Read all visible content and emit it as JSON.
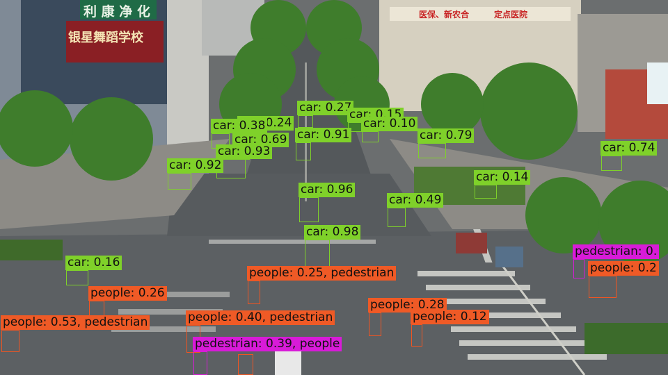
{
  "scene": {
    "signs": {
      "top_left_green": "利 康 净 化",
      "red_banner": "银星舞蹈学校",
      "top_right_building": "医保、新农合　　　定点医院"
    }
  },
  "detections": [
    {
      "cls": "car",
      "label": "car: 0.27"
    },
    {
      "cls": "car",
      "label": "car: 0.15"
    },
    {
      "cls": "car",
      "label": "car: 0.10"
    },
    {
      "cls": "car",
      "label": "car: 0.24"
    },
    {
      "cls": "car",
      "label": "car: 0.38"
    },
    {
      "cls": "car",
      "label": "car: 0.69"
    },
    {
      "cls": "car",
      "label": "car: 0.91"
    },
    {
      "cls": "car",
      "label": "car: 0.93"
    },
    {
      "cls": "car",
      "label": "car: 0.79"
    },
    {
      "cls": "car",
      "label": "car: 0.74"
    },
    {
      "cls": "car",
      "label": "car: 0.92"
    },
    {
      "cls": "car",
      "label": "car: 0.14"
    },
    {
      "cls": "car",
      "label": "car: 0.96"
    },
    {
      "cls": "car",
      "label": "car: 0.49"
    },
    {
      "cls": "car",
      "label": "car: 0.98"
    },
    {
      "cls": "car",
      "label": "car: 0.16"
    },
    {
      "cls": "ped",
      "label": "pedestrian: 0."
    },
    {
      "cls": "people",
      "label": "people: 0.2"
    },
    {
      "cls": "people",
      "label": "people: 0.25, pedestrian"
    },
    {
      "cls": "people",
      "label": "people: 0.26"
    },
    {
      "cls": "people",
      "label": "people: 0.28"
    },
    {
      "cls": "people",
      "label": "people: 0.12"
    },
    {
      "cls": "people",
      "label": "people: 0.53, pedestrian"
    },
    {
      "cls": "people",
      "label": "people: 0.40, pedestrian"
    },
    {
      "cls": "ped",
      "label": "pedestrian: 0.39, people"
    }
  ]
}
